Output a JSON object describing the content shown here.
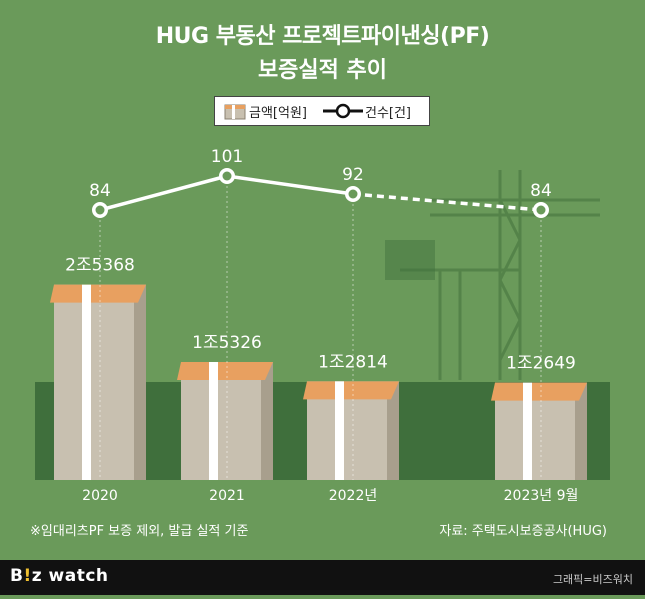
{
  "title_line1": "HUG 부동산 프로젝트파이낸싱(PF)",
  "title_line2": "보증실적 추이",
  "legend": {
    "amount_label": "금액[억원]",
    "count_label": "건수[건]"
  },
  "note": "※임대리츠PF 보증 제외, 발급 실적 기준",
  "source": "자료: 주택도시보증공사(HUG)",
  "brand": {
    "part1": "B",
    "dot": "!",
    "part2": "z watch"
  },
  "credit": "그래픽=비즈워치",
  "colors": {
    "background": "#6a9a5a",
    "band": "#3f6f3c",
    "bundle": "#c8c0b0",
    "wrap": "#e8a060",
    "line": "#ffffff"
  },
  "chart_data": {
    "type": "bar",
    "categories": [
      "2020",
      "2021",
      "2022년",
      "2023년 9월"
    ],
    "series": [
      {
        "name": "금액[억원]",
        "values": [
          25368,
          15326,
          12814,
          12649
        ],
        "labels": [
          "2조5368",
          "1조5326",
          "1조2814",
          "1조2649"
        ]
      },
      {
        "name": "건수[건]",
        "type": "line",
        "values": [
          84,
          101,
          92,
          84
        ],
        "dashed_last_segment": true
      }
    ],
    "title": "HUG 부동산 프로젝트파이낸싱(PF) 보증실적 추이"
  }
}
